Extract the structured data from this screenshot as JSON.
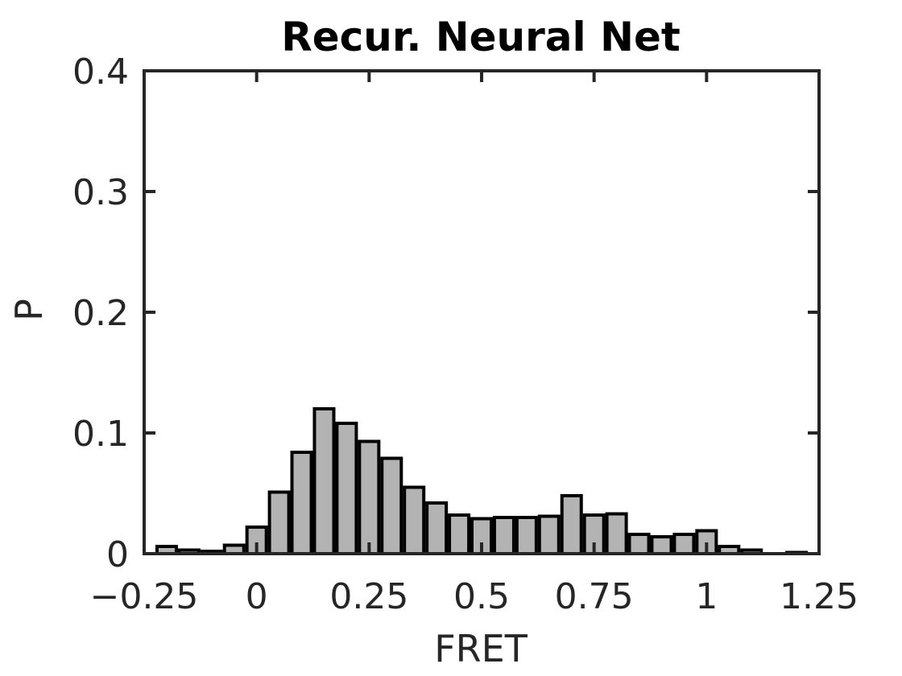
{
  "chart_data": {
    "type": "bar",
    "title": "Recur. Neural Net",
    "xlabel": "FRET",
    "ylabel": "P",
    "xlim": [
      -0.25,
      1.25
    ],
    "ylim": [
      0,
      0.4
    ],
    "xticks": [
      -0.25,
      0,
      0.25,
      0.5,
      0.75,
      1,
      1.25
    ],
    "xtick_labels": [
      "−0.25",
      "0",
      "0.25",
      "0.5",
      "0.75",
      "1",
      "1.25"
    ],
    "yticks": [
      0,
      0.1,
      0.2,
      0.3,
      0.4
    ],
    "ytick_labels": [
      "0",
      "0.1",
      "0.2",
      "0.3",
      "0.4"
    ],
    "bin_width": 0.05,
    "bar_color": "#b3b3b3",
    "edge_color": "#000000",
    "x": [
      -0.2,
      -0.15,
      -0.1,
      -0.05,
      0.0,
      0.05,
      0.1,
      0.15,
      0.2,
      0.25,
      0.3,
      0.35,
      0.4,
      0.45,
      0.5,
      0.55,
      0.6,
      0.65,
      0.7,
      0.75,
      0.8,
      0.85,
      0.9,
      0.95,
      1.0,
      1.05,
      1.1,
      1.15,
      1.2
    ],
    "values": [
      0.006,
      0.003,
      0.002,
      0.007,
      0.022,
      0.051,
      0.084,
      0.12,
      0.108,
      0.093,
      0.079,
      0.055,
      0.042,
      0.032,
      0.029,
      0.03,
      0.03,
      0.031,
      0.048,
      0.032,
      0.033,
      0.016,
      0.014,
      0.016,
      0.019,
      0.006,
      0.003,
      0.0,
      0.001
    ]
  }
}
